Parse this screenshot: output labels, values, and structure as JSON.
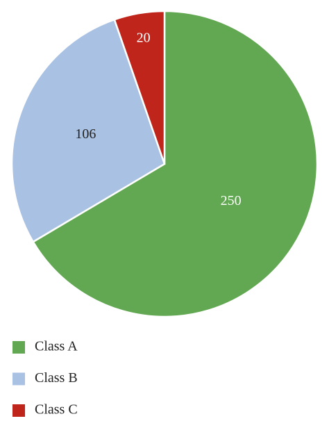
{
  "chart_data": {
    "type": "pie",
    "categories": [
      "Class A",
      "Class B",
      "Class C"
    ],
    "values": [
      250,
      106,
      20
    ],
    "colors": [
      "#62a852",
      "#a9c2e3",
      "#c0251c"
    ],
    "label_colors": [
      "#ffffff",
      "#222222",
      "#ffffff"
    ],
    "legend": "bottom-left"
  }
}
